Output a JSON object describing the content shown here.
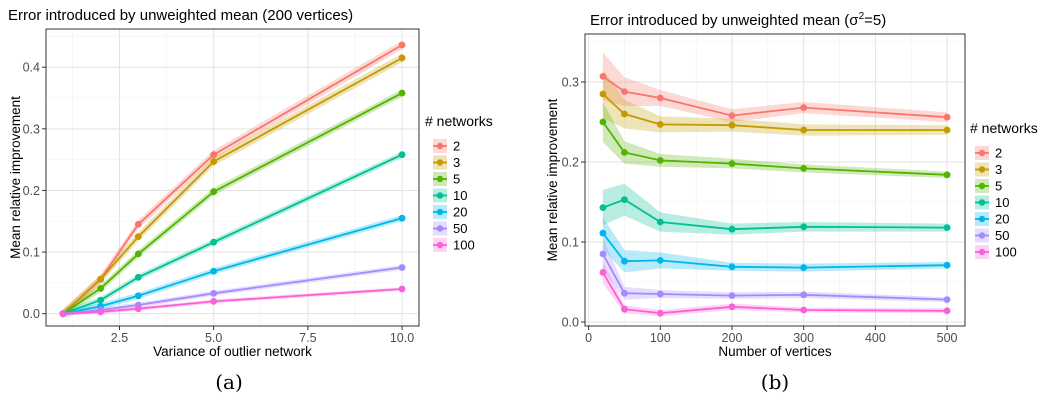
{
  "colors": [
    "#F8766D",
    "#C49A00",
    "#53B400",
    "#00C094",
    "#00B6EB",
    "#A58AFF",
    "#FB61D7"
  ],
  "chart_data": [
    {
      "type": "line",
      "title": "Error introduced by unweighted mean (200 vertices)",
      "xlabel": "Variance of outlier network",
      "ylabel": "Mean relative improvement",
      "xlim": [
        0.55,
        10.45
      ],
      "ylim": [
        -0.02,
        0.462
      ],
      "xticks": [
        2.5,
        5.0,
        7.5,
        10.0
      ],
      "xtick_labels": [
        "2.5",
        "5.0",
        "7.5",
        "10.0"
      ],
      "yticks": [
        0.0,
        0.1,
        0.2,
        0.3,
        0.4
      ],
      "ytick_labels": [
        "0.0",
        "0.1",
        "0.2",
        "0.3",
        "0.4"
      ],
      "legend_title": "# networks",
      "legend_position": "right",
      "caption": "(a)",
      "grid": true,
      "x": [
        1,
        2,
        3,
        5,
        10
      ],
      "series": [
        {
          "name": "2",
          "values": [
            0.0,
            0.056,
            0.145,
            0.258,
            0.436
          ],
          "band": 0.007
        },
        {
          "name": "3",
          "values": [
            0.0,
            0.056,
            0.125,
            0.247,
            0.415
          ],
          "band": 0.007
        },
        {
          "name": "5",
          "values": [
            0.0,
            0.041,
            0.097,
            0.198,
            0.358
          ],
          "band": 0.006
        },
        {
          "name": "10",
          "values": [
            0.0,
            0.022,
            0.059,
            0.116,
            0.258
          ],
          "band": 0.005
        },
        {
          "name": "20",
          "values": [
            0.0,
            0.012,
            0.029,
            0.069,
            0.155
          ],
          "band": 0.005
        },
        {
          "name": "50",
          "values": [
            0.0,
            0.006,
            0.014,
            0.033,
            0.075
          ],
          "band": 0.004
        },
        {
          "name": "100",
          "values": [
            0.0,
            0.003,
            0.008,
            0.02,
            0.04
          ],
          "band": 0.003
        }
      ]
    },
    {
      "type": "line",
      "title": "Error introduced by unweighted mean (σ²=5)",
      "xlabel": "Number of vertices",
      "ylabel": "Mean relative improvement",
      "xlim": [
        -5,
        525
      ],
      "ylim": [
        -0.005,
        0.36
      ],
      "xticks": [
        0,
        100,
        200,
        300,
        400,
        500
      ],
      "xtick_labels": [
        "0",
        "100",
        "200",
        "300",
        "400",
        "500"
      ],
      "yticks": [
        0.0,
        0.1,
        0.2,
        0.3
      ],
      "ytick_labels": [
        "0.0",
        "0.1",
        "0.2",
        "0.3"
      ],
      "legend_title": "# networks",
      "legend_position": "right",
      "caption": "(b)",
      "grid": true,
      "x": [
        20,
        50,
        100,
        200,
        300,
        500
      ],
      "series": [
        {
          "name": "2",
          "values": [
            0.307,
            0.288,
            0.28,
            0.258,
            0.268,
            0.256
          ],
          "band": [
            0.03,
            0.018,
            0.01,
            0.008,
            0.007,
            0.006
          ]
        },
        {
          "name": "3",
          "values": [
            0.285,
            0.26,
            0.247,
            0.246,
            0.24,
            0.24
          ],
          "band": [
            0.03,
            0.018,
            0.01,
            0.008,
            0.007,
            0.006
          ]
        },
        {
          "name": "5",
          "values": [
            0.25,
            0.212,
            0.202,
            0.198,
            0.192,
            0.184
          ],
          "band": [
            0.025,
            0.014,
            0.008,
            0.006,
            0.005,
            0.004
          ]
        },
        {
          "name": "10",
          "values": [
            0.143,
            0.153,
            0.125,
            0.116,
            0.119,
            0.118
          ],
          "band": [
            0.022,
            0.02,
            0.012,
            0.007,
            0.006,
            0.005
          ]
        },
        {
          "name": "20",
          "values": [
            0.111,
            0.076,
            0.077,
            0.069,
            0.068,
            0.071
          ],
          "band": [
            0.02,
            0.014,
            0.01,
            0.005,
            0.005,
            0.004
          ]
        },
        {
          "name": "50",
          "values": [
            0.085,
            0.036,
            0.035,
            0.033,
            0.034,
            0.028
          ],
          "band": [
            0.02,
            0.008,
            0.005,
            0.004,
            0.004,
            0.003
          ]
        },
        {
          "name": "100",
          "values": [
            0.062,
            0.016,
            0.011,
            0.019,
            0.015,
            0.014
          ],
          "band": [
            0.014,
            0.005,
            0.004,
            0.004,
            0.003,
            0.003
          ]
        }
      ]
    }
  ]
}
